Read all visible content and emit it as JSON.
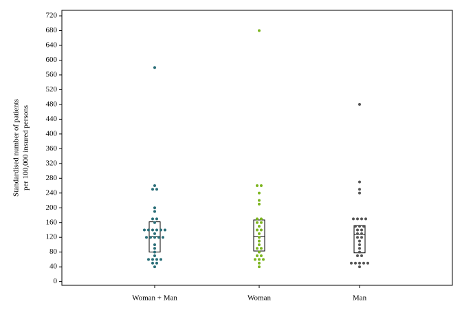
{
  "chart_data": {
    "type": "dotbox",
    "y_label": [
      "Standardised number of patients",
      "per 100,000 insured persons"
    ],
    "categories": [
      "Woman + Man",
      "Woman",
      "Man"
    ],
    "series": [
      {
        "name": "Woman + Man",
        "color": "#2a6e78",
        "values": [
          580,
          260,
          250,
          250,
          200,
          190,
          170,
          170,
          160,
          140,
          140,
          140,
          140,
          140,
          140,
          130,
          120,
          120,
          120,
          120,
          120,
          100,
          90,
          80,
          70,
          60,
          60,
          60,
          60,
          50,
          50,
          40
        ],
        "box": {
          "q1": 80,
          "median": 122,
          "q3": 162
        }
      },
      {
        "name": "Woman",
        "color": "#7cb51f",
        "values": [
          680,
          260,
          260,
          240,
          220,
          210,
          170,
          170,
          160,
          160,
          150,
          140,
          140,
          130,
          120,
          110,
          100,
          90,
          90,
          80,
          70,
          70,
          60,
          60,
          60,
          50,
          40
        ],
        "box": {
          "q1": 83,
          "median": 122,
          "q3": 167
        }
      },
      {
        "name": "Man",
        "color": "#555555",
        "values": [
          480,
          270,
          250,
          240,
          170,
          170,
          170,
          170,
          150,
          150,
          150,
          140,
          140,
          130,
          130,
          120,
          120,
          110,
          100,
          90,
          80,
          70,
          70,
          50,
          50,
          50,
          50,
          50,
          40
        ],
        "box": {
          "q1": 78,
          "median": 128,
          "q3": 152
        }
      }
    ],
    "ylim": [
      -10,
      735
    ],
    "yticks": [
      0,
      40,
      80,
      120,
      160,
      200,
      240,
      280,
      320,
      360,
      400,
      440,
      480,
      520,
      560,
      600,
      640,
      680,
      720
    ]
  }
}
